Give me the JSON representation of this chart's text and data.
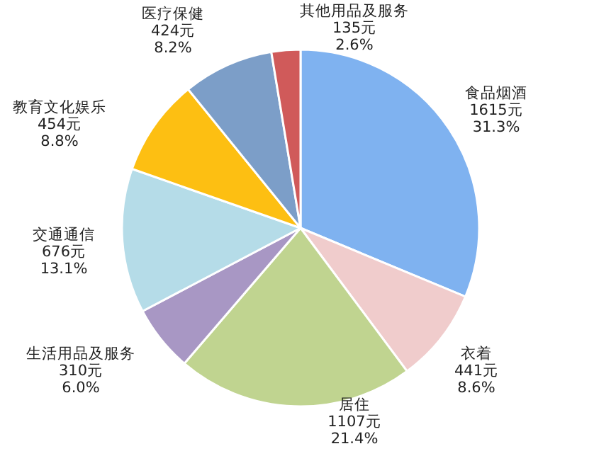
{
  "chart_data": {
    "type": "pie",
    "categories": [
      "食品烟酒",
      "衣着",
      "居住",
      "生活用品及服务",
      "交通通信",
      "教育文化娱乐",
      "医疗保健",
      "其他用品及服务"
    ],
    "values": [
      1615,
      441,
      1107,
      310,
      676,
      454,
      424,
      135
    ],
    "value_labels": [
      "1615元 31.3%",
      "441元 8.6%",
      "1107元 21.4%",
      "310元 6.0%",
      "676元 13.1%",
      "454元 8.8%",
      "424元 8.2%",
      "135元 2.6%"
    ],
    "colors": [
      "#7fb2f0",
      "#f0cccc",
      "#c0d490",
      "#a897c4",
      "#b5dce8",
      "#fdbf12",
      "#7c9ec8",
      "#d05a5a"
    ]
  }
}
